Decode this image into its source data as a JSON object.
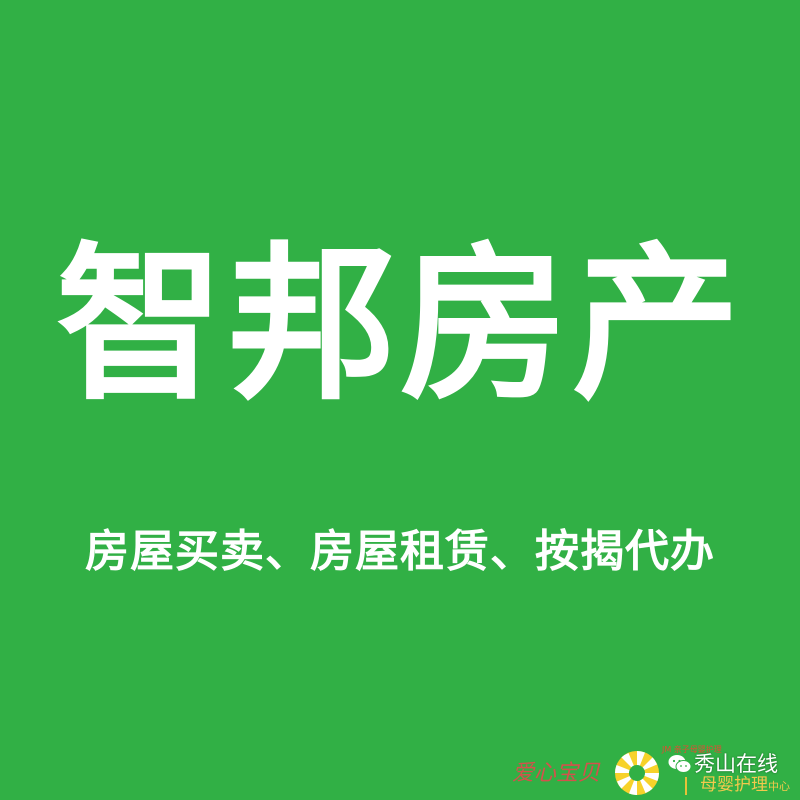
{
  "sign": {
    "title": "智邦房产",
    "subtitle": "房屋买卖、房屋租赁、按揭代办"
  },
  "watermark": {
    "left_text": "爱心宝贝",
    "logo_small_text": "JM 亲子母婴护理",
    "account_name": "秀山在线",
    "care_text": "母婴护理",
    "care_suffix": "中心",
    "icon": "wechat-icon"
  },
  "colors": {
    "background": "#31b045",
    "text": "#ffffff",
    "watermark_red": "#e5484d",
    "watermark_gold": "#f2c94c"
  }
}
